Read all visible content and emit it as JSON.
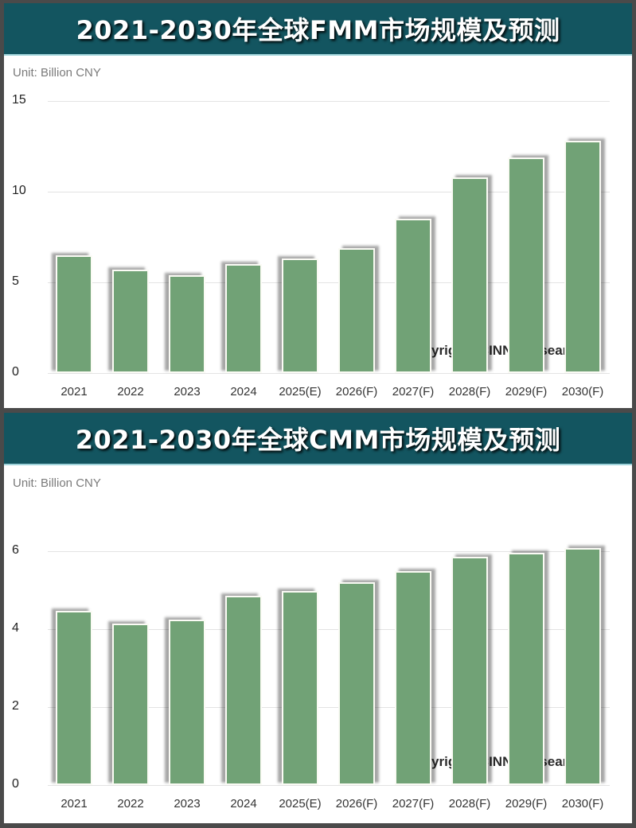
{
  "charts": [
    {
      "title": "2021-2030年全球FMM市场规模及预测",
      "unit": "Unit: Billion CNY",
      "yticks": [
        "15",
        "10",
        "5",
        "0"
      ],
      "copyright": "Copyright©CINNOResearch"
    },
    {
      "title": "2021-2030年全球CMM市场规模及预测",
      "unit": "Unit: Billion CNY",
      "yticks": [
        "6",
        "4",
        "2",
        "0"
      ],
      "copyright": "Copyright©CINNOResearch"
    }
  ],
  "colors": {
    "header": "#135560",
    "bar": "#71a276",
    "frame": "#4a4a4a"
  },
  "chart_data": [
    {
      "type": "bar",
      "title": "2021-2030年全球FMM市场规模及预测",
      "ylabel": "Unit: Billion CNY",
      "categories": [
        "2021",
        "2022",
        "2023",
        "2024",
        "2025(E)",
        "2026(F)",
        "2027(F)",
        "2028(F)",
        "2029(F)",
        "2030(F)"
      ],
      "values": [
        6.5,
        5.7,
        5.4,
        6.0,
        6.3,
        6.9,
        8.5,
        10.8,
        11.9,
        12.8
      ],
      "ylim": [
        0,
        15
      ],
      "yticks": [
        0,
        5,
        10,
        15
      ],
      "grid": true,
      "annotation": "Copyright©CINNOResearch"
    },
    {
      "type": "bar",
      "title": "2021-2030年全球CMM市场规模及预测",
      "ylabel": "Unit: Billion CNY",
      "categories": [
        "2021",
        "2022",
        "2023",
        "2024",
        "2025(E)",
        "2026(F)",
        "2027(F)",
        "2028(F)",
        "2029(F)",
        "2030(F)"
      ],
      "values": [
        4.47,
        4.14,
        4.24,
        4.86,
        4.98,
        5.2,
        5.49,
        5.86,
        5.96,
        6.08
      ],
      "ylim": [
        0,
        7
      ],
      "yticks": [
        0,
        2,
        4,
        6
      ],
      "grid": true,
      "annotation": "Copyright©CINNOResearch"
    }
  ]
}
